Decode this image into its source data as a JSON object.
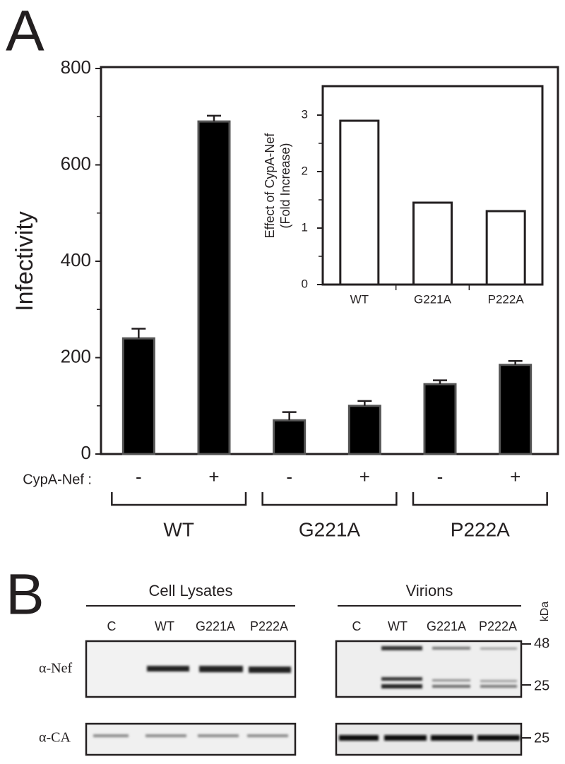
{
  "panels": {
    "A": "A",
    "B": "B"
  },
  "chart_data": [
    {
      "type": "bar",
      "ylabel": "Infectivity",
      "row_label": "CypA-Nef :",
      "categories": [
        "-",
        "+",
        "-",
        "+",
        "-",
        "+"
      ],
      "values": [
        240,
        690,
        70,
        100,
        145,
        185
      ],
      "errors": [
        20,
        12,
        17,
        10,
        8,
        8
      ],
      "groups": [
        "WT",
        "G221A",
        "P222A"
      ],
      "color": "#000000",
      "ylim": [
        0,
        800
      ],
      "yticks": [
        0,
        200,
        400,
        600,
        800
      ],
      "yminor": [
        100,
        300,
        500,
        700
      ]
    },
    {
      "type": "bar",
      "ylabel": [
        "Effect of CypA-Nef",
        "(Fold Increase)"
      ],
      "categories": [
        "WT",
        "G221A",
        "P222A"
      ],
      "values": [
        2.9,
        1.45,
        1.3
      ],
      "color": "#ffffff",
      "ylim": [
        0,
        3.5
      ],
      "yticks": [
        0,
        1,
        2,
        3
      ],
      "yminor": [
        0.5,
        1.5,
        2.5
      ]
    }
  ],
  "blots": {
    "lysates_title": "Cell Lysates",
    "virions_title": "Virions",
    "lysate_lanes": [
      "C",
      "WT",
      "G221A",
      "P222A"
    ],
    "virion_lanes": [
      "C",
      "WT",
      "G221A",
      "P222A"
    ],
    "antibodies": [
      "α-Nef",
      "α-CA"
    ],
    "unit": "kDa",
    "markers": [
      "48",
      "25",
      "25"
    ]
  }
}
